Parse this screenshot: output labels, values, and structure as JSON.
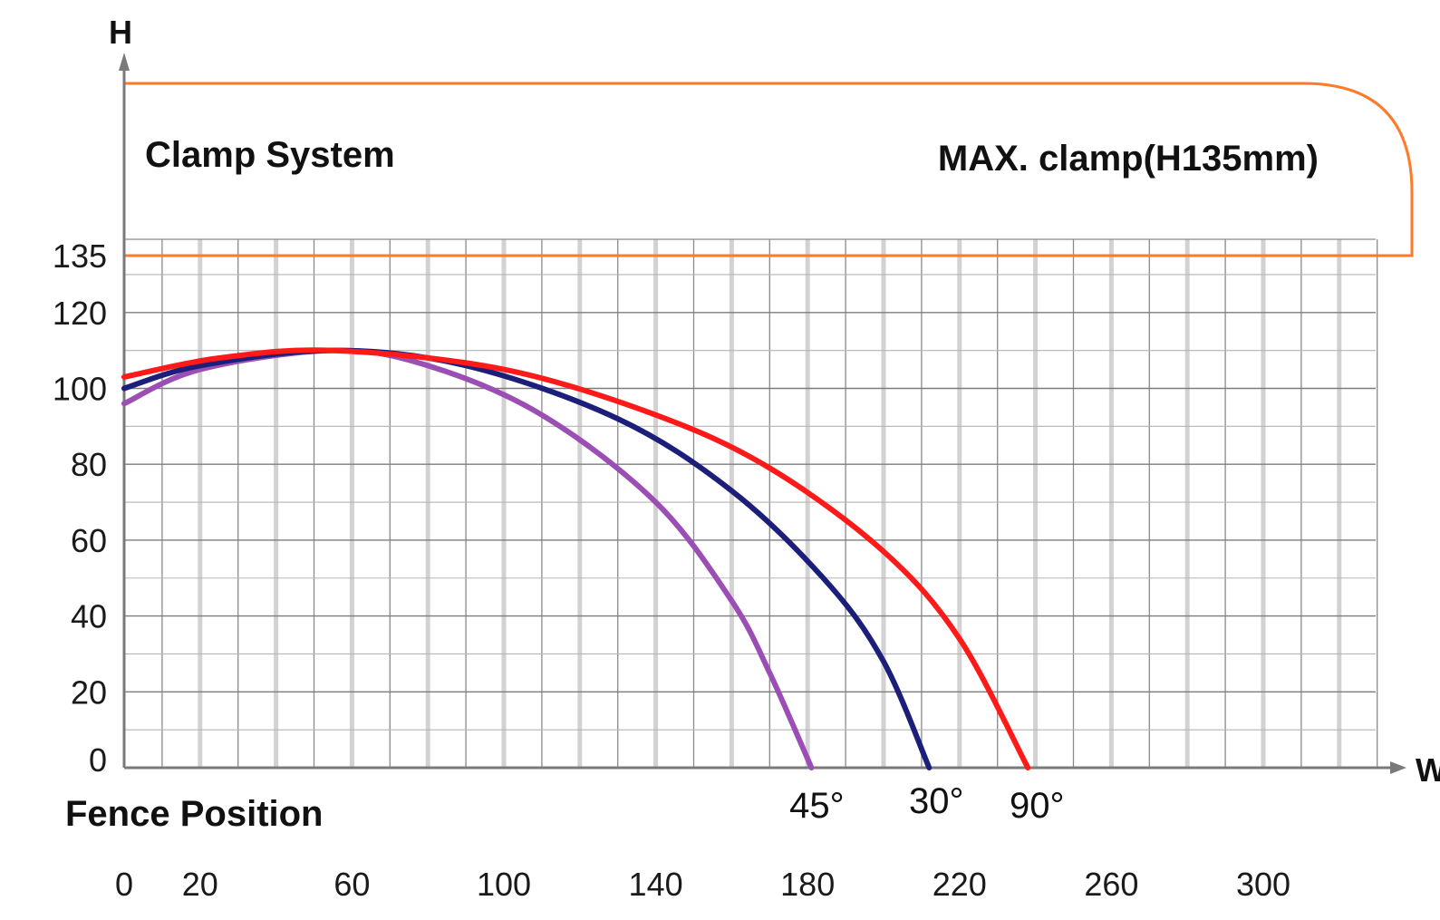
{
  "chart_data": {
    "type": "line",
    "title": "",
    "ylabel": "H",
    "xlabel": "W",
    "xlabel_secondary": "Fence Position",
    "ylim": [
      0,
      135
    ],
    "xlim": [
      0,
      330
    ],
    "grid": true,
    "y_ticks": [
      0,
      20,
      40,
      60,
      80,
      100,
      120,
      135
    ],
    "x_ticks": [
      0,
      20,
      60,
      100,
      140,
      180,
      220,
      260,
      300
    ],
    "clamp_system": {
      "label": "Clamp System",
      "max_label": "MAX. clamp(H135mm)",
      "max_height": 135,
      "color": "#ff7a29"
    },
    "series": [
      {
        "name": "45°",
        "color": "#9b4fb4",
        "x": [
          0,
          20,
          55,
          80,
          110,
          140,
          160,
          170,
          181
        ],
        "y": [
          96,
          105,
          110,
          106,
          93,
          70,
          44,
          25,
          0
        ]
      },
      {
        "name": "30°",
        "color": "#1c1f7a",
        "x": [
          0,
          20,
          55,
          90,
          130,
          160,
          185,
          200,
          212
        ],
        "y": [
          100,
          106,
          110,
          106,
          92,
          73,
          49,
          28,
          0
        ]
      },
      {
        "name": "90°",
        "color": "#ff1a1a",
        "x": [
          0,
          25,
          55,
          100,
          140,
          170,
          200,
          220,
          238
        ],
        "y": [
          103,
          108,
          110,
          105,
          93,
          79,
          57,
          34,
          0
        ]
      }
    ]
  }
}
